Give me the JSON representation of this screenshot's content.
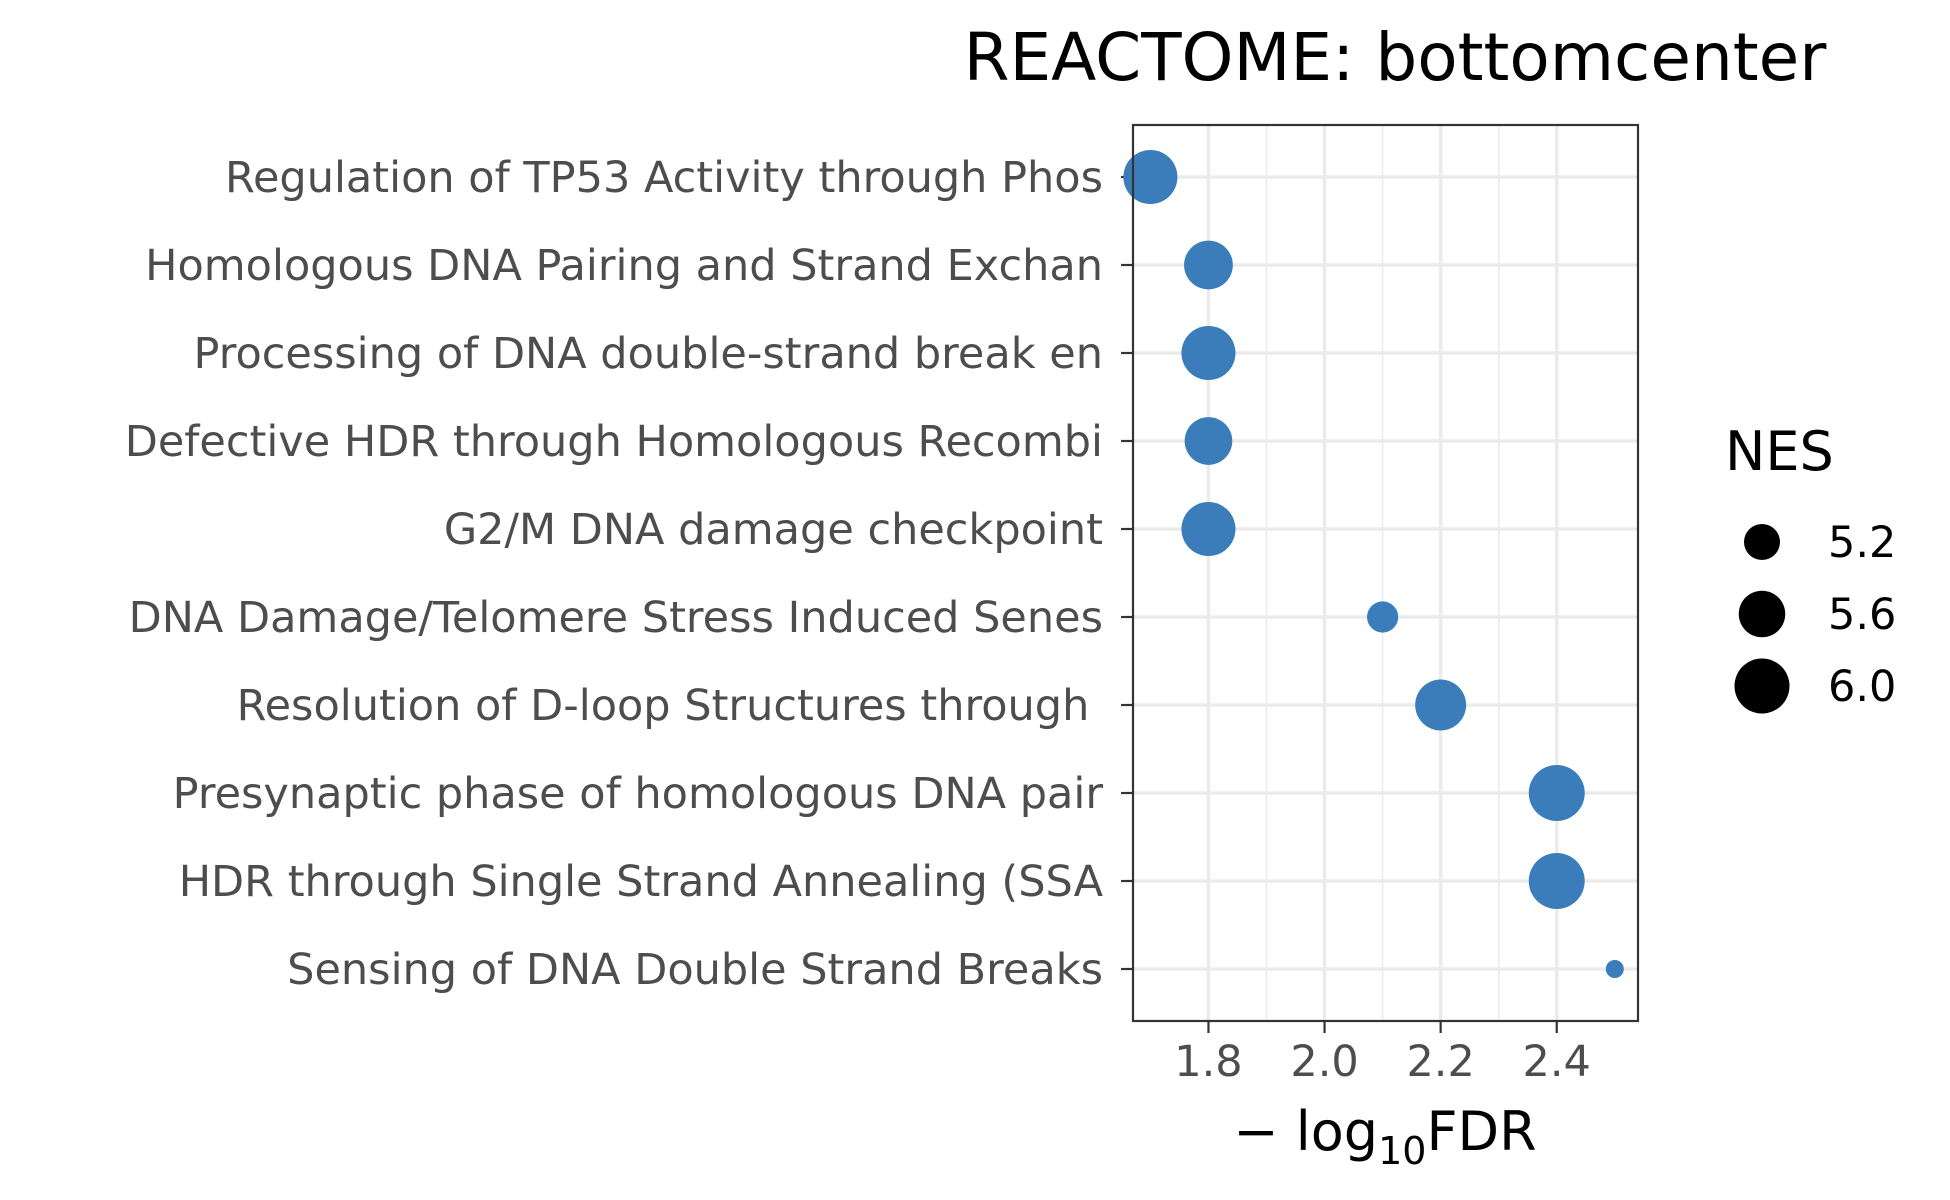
{
  "chart_data": {
    "type": "scatter",
    "title": "REACTOME: bottomcenter",
    "xlabel_prefix": "− log",
    "xlabel_sub": "10",
    "xlabel_suffix": "FDR",
    "xlim": [
      1.67,
      2.54
    ],
    "xticks": [
      1.8,
      2.0,
      2.2,
      2.4
    ],
    "xtick_labels": [
      "1.8",
      "2.0",
      "2.2",
      "2.4"
    ],
    "grid": true,
    "point_color": "#3A7DBA",
    "categories": [
      "Regulation of TP53 Activity through Phos",
      "Homologous DNA Pairing and Strand Exchan",
      "Processing of DNA double-strand break en",
      "Defective HDR through Homologous Recombi",
      "G2/M DNA damage checkpoint",
      "DNA Damage/Telomere Stress Induced Senes",
      "Resolution of D-loop Structures through ",
      "Presynaptic phase of homologous DNA pair",
      "HDR through Single Strand Annealing (SSA",
      "Sensing of DNA Double Strand Breaks"
    ],
    "x": [
      1.7,
      1.8,
      1.8,
      1.8,
      1.8,
      2.1,
      2.2,
      2.4,
      2.4,
      2.5
    ],
    "size": [
      5.95,
      5.7,
      5.95,
      5.65,
      5.95,
      5.05,
      5.8,
      6.05,
      6.05,
      4.75
    ],
    "legend": {
      "title": "NES",
      "position": "right",
      "values": [
        5.2,
        5.6,
        6.0
      ],
      "labels": [
        "5.2",
        "5.6",
        "6.0"
      ]
    }
  }
}
